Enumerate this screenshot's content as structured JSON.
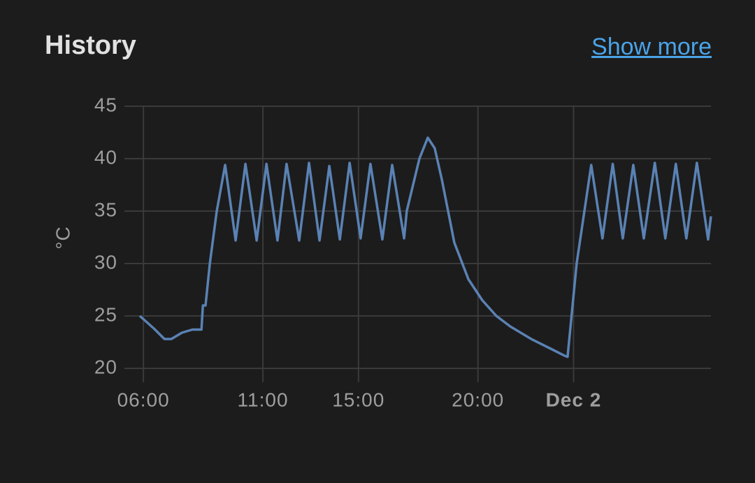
{
  "header": {
    "title": "History",
    "link": "Show more"
  },
  "chart_data": {
    "type": "line",
    "y_label": "°C",
    "x": [
      5.85,
      6.44,
      6.88,
      7.17,
      7.61,
      8.05,
      8.43,
      8.49,
      8.6,
      8.78,
      9.07,
      9.42,
      9.86,
      10.27,
      10.74,
      11.15,
      11.61,
      11.99,
      12.52,
      12.93,
      13.37,
      13.78,
      14.22,
      14.63,
      15.09,
      15.5,
      16.0,
      16.41,
      16.91,
      17.02,
      17.55,
      17.9,
      18.19,
      18.49,
      19.01,
      19.6,
      20.18,
      20.77,
      21.35,
      22.23,
      23.11,
      23.63,
      23.75,
      24.13,
      24.74,
      25.21,
      25.64,
      26.06,
      26.5,
      26.94,
      27.4,
      27.84,
      28.28,
      28.72,
      29.16,
      29.63,
      29.75
    ],
    "series": [
      {
        "color": "#5a82b4",
        "values": [
          25,
          23.8,
          22.8,
          22.8,
          23.4,
          23.7,
          23.7,
          26,
          26,
          30,
          35,
          39.4,
          32.2,
          39.5,
          32.2,
          39.5,
          32.2,
          39.5,
          32.2,
          39.6,
          32.2,
          39.3,
          32.3,
          39.6,
          32.4,
          39.5,
          32.3,
          39.4,
          32.4,
          35,
          40,
          42,
          41,
          38,
          32,
          28.5,
          26.5,
          25,
          24,
          22.8,
          21.8,
          21.2,
          21.1,
          30,
          39.4,
          32.4,
          39.5,
          32.4,
          39.4,
          32.4,
          39.6,
          32.4,
          39.5,
          32.4,
          39.6,
          32.3,
          34.5
        ]
      }
    ],
    "xlim": [
      5.85,
      29.75
    ],
    "xticks": [
      {
        "value": 6,
        "label": "06:00"
      },
      {
        "value": 11,
        "label": "11:00"
      },
      {
        "value": 15,
        "label": "15:00"
      },
      {
        "value": 20,
        "label": "20:00"
      },
      {
        "value": 24,
        "label": "Dec 2"
      }
    ],
    "ylim": [
      20,
      45
    ],
    "yticks": [
      20,
      25,
      30,
      35,
      40,
      45
    ],
    "grid": true
  }
}
